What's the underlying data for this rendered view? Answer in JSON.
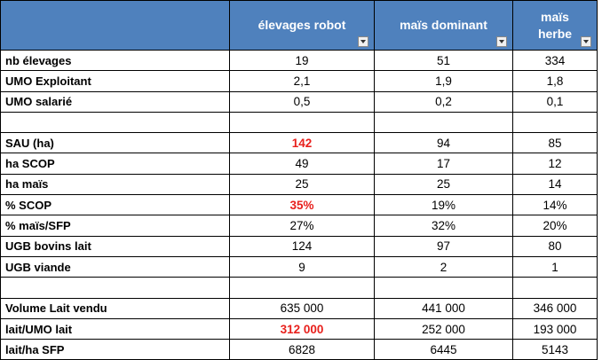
{
  "table": {
    "header": [
      "élevages robot",
      "maïs dominant",
      "maïs herbe"
    ],
    "rows": [
      [
        "nb élevages",
        "19",
        "51",
        "334"
      ],
      [
        "UMO Exploitant",
        "2,1",
        "1,9",
        "1,8"
      ],
      [
        "UMO salarié",
        "0,5",
        "0,2",
        "0,1"
      ],
      [],
      [
        "SAU (ha)",
        "142",
        "94",
        "85"
      ],
      [
        "ha SCOP",
        "49",
        "17",
        "12"
      ],
      [
        "ha maïs",
        "25",
        "25",
        "14"
      ],
      [
        "% SCOP",
        "35%",
        "19%",
        "14%"
      ],
      [
        "% maïs/SFP",
        "27%",
        "32%",
        "20%"
      ],
      [
        "UGB bovins lait",
        "124",
        "97",
        "80"
      ],
      [
        "UGB viande",
        "9",
        "2",
        "1"
      ],
      [],
      [
        "Volume Lait vendu",
        "635 000",
        "441 000",
        "346 000"
      ],
      [
        "lait/UMO lait",
        "312 000",
        "252 000",
        "193 000"
      ],
      [
        "lait/ha SFP",
        "6828",
        "6445",
        "5143"
      ]
    ],
    "header_color": "#4f81bd",
    "highlight_color": "#e8201c",
    "highlighted": [
      [
        4,
        1
      ],
      [
        7,
        1
      ],
      [
        13,
        1
      ]
    ]
  }
}
